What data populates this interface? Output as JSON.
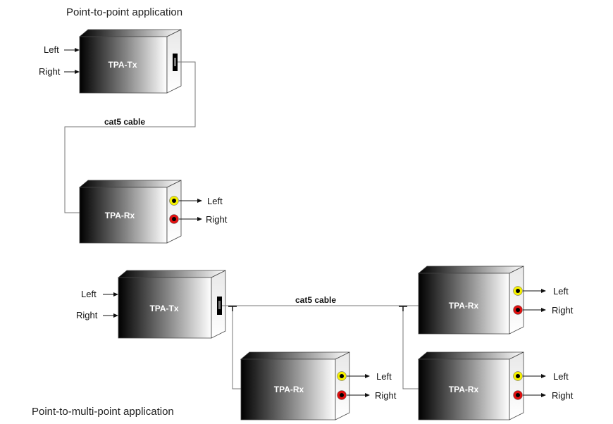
{
  "point_to_point": {
    "title": "Point-to-point application",
    "tx": {
      "name": "TPA-Tx",
      "input_left": "Left",
      "input_right": "Right"
    },
    "cable": "cat5 cable",
    "rx": {
      "name": "TPA-Rx",
      "output_left": "Left",
      "output_right": "Right"
    }
  },
  "point_to_multipoint": {
    "title": "Point-to-multi-point application",
    "tx": {
      "name": "TPA-Tx",
      "input_left": "Left",
      "input_right": "Right"
    },
    "cable": "cat5 cable",
    "receivers": [
      {
        "name": "TPA-Rx",
        "output_left": "Left",
        "output_right": "Right"
      },
      {
        "name": "TPA-Rx",
        "output_left": "Left",
        "output_right": "Right"
      },
      {
        "name": "TPA-Rx",
        "output_left": "Left",
        "output_right": "Right"
      }
    ]
  },
  "colors": {
    "left_jack": "#f5f000",
    "right_jack": "#e01010",
    "box_dark": "#000000",
    "box_light": "#ffffff"
  }
}
